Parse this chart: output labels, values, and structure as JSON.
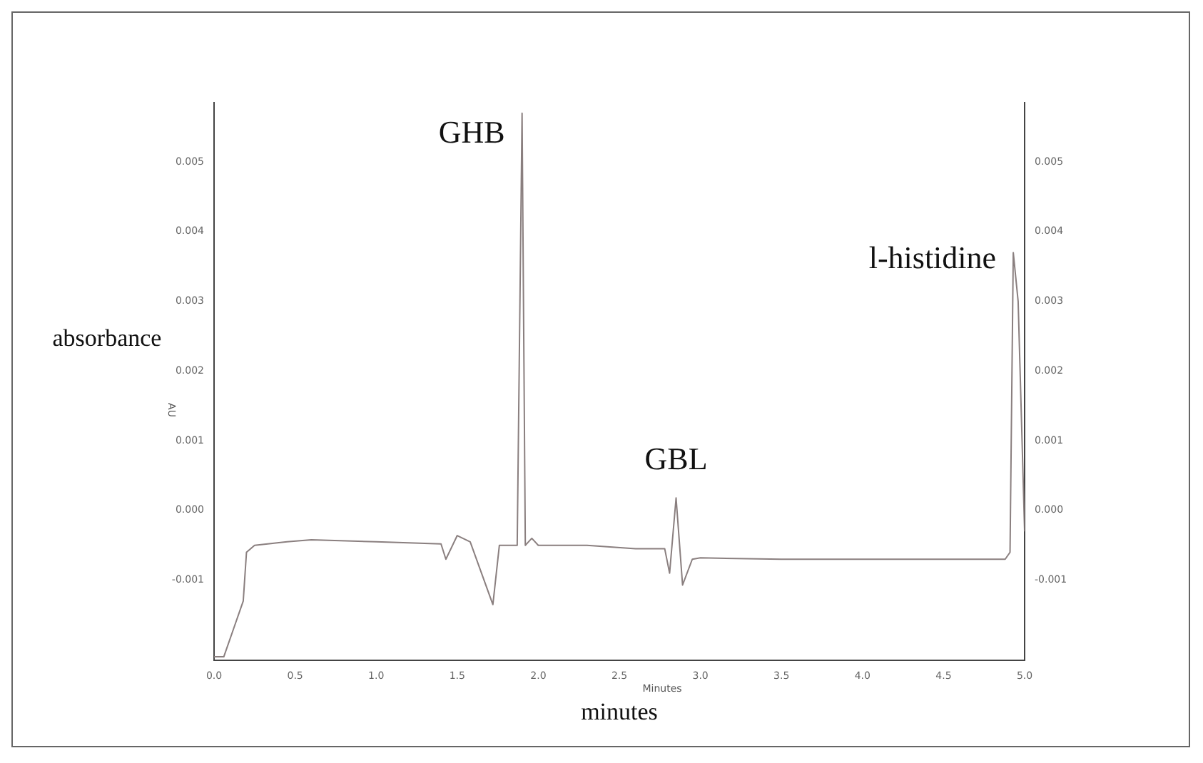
{
  "chart_data": {
    "type": "line",
    "xlabel": "minutes",
    "ylabel": "absorbance",
    "annotations": [
      {
        "text": "GHB",
        "x": 1.9,
        "y": 0.0057
      },
      {
        "text": "GBL",
        "x": 2.85,
        "y": 0.00018
      },
      {
        "text": "l-histidine",
        "x": 4.93,
        "y": 0.0037
      },
      "AU",
      "Minutes"
    ],
    "x": [
      0,
      0.06,
      0.12,
      0.18,
      0.2,
      0.25,
      0.45,
      0.6,
      1.0,
      1.4,
      1.43,
      1.5,
      1.58,
      1.65,
      1.72,
      1.76,
      1.87,
      1.9,
      1.92,
      1.96,
      2.0,
      2.3,
      2.6,
      2.78,
      2.81,
      2.85,
      2.89,
      2.95,
      3.0,
      3.5,
      4.0,
      4.5,
      4.88,
      4.91,
      4.93,
      4.96,
      5.0
    ],
    "series": [
      {
        "color": "#8a7f7f",
        "values": [
          -0.0021,
          -0.0021,
          -0.0017,
          -0.0013,
          -0.0006,
          -0.0005,
          -0.00045,
          -0.00042,
          -0.00045,
          -0.00048,
          -0.0007,
          -0.00036,
          -0.00045,
          -0.0009,
          -0.00135,
          -0.0005,
          -0.0005,
          0.0057,
          -0.0005,
          -0.0004,
          -0.0005,
          -0.0005,
          -0.00055,
          -0.00055,
          -0.0009,
          0.00018,
          -0.00107,
          -0.0007,
          -0.00068,
          -0.0007,
          -0.0007,
          -0.0007,
          -0.0007,
          -0.0006,
          0.0037,
          0.003,
          -0.0003
        ]
      }
    ],
    "xlim": [
      0,
      5
    ],
    "xticks": [
      {
        "value": 0,
        "label": "0.0"
      },
      {
        "value": 0.5,
        "label": "0.5"
      },
      {
        "value": 1,
        "label": "1.0"
      },
      {
        "value": 1.5,
        "label": "1.5"
      },
      {
        "value": 2,
        "label": "2.0"
      },
      {
        "value": 2.5,
        "label": "2.5"
      },
      {
        "value": 3,
        "label": "3.0"
      },
      {
        "value": 3.5,
        "label": "3.5"
      },
      {
        "value": 4,
        "label": "4.0"
      },
      {
        "value": 4.5,
        "label": "4.5"
      },
      {
        "value": 5,
        "label": "5.0"
      }
    ],
    "ylim": [
      -0.00215,
      0.00585
    ],
    "yticks": [
      -0.001,
      {
        "value": 0,
        "label": "0.000"
      },
      0.001,
      0.002,
      0.003,
      0.004,
      0.005
    ],
    "y2lim": [
      -0.00215,
      0.00585
    ],
    "y2ticks": [
      -0.001,
      {
        "value": 0,
        "label": "0.000"
      },
      0.001,
      0.002,
      0.003,
      0.004,
      0.005
    ],
    "grid": false,
    "legend": false,
    "marker": "none",
    "line_style": "solid"
  }
}
